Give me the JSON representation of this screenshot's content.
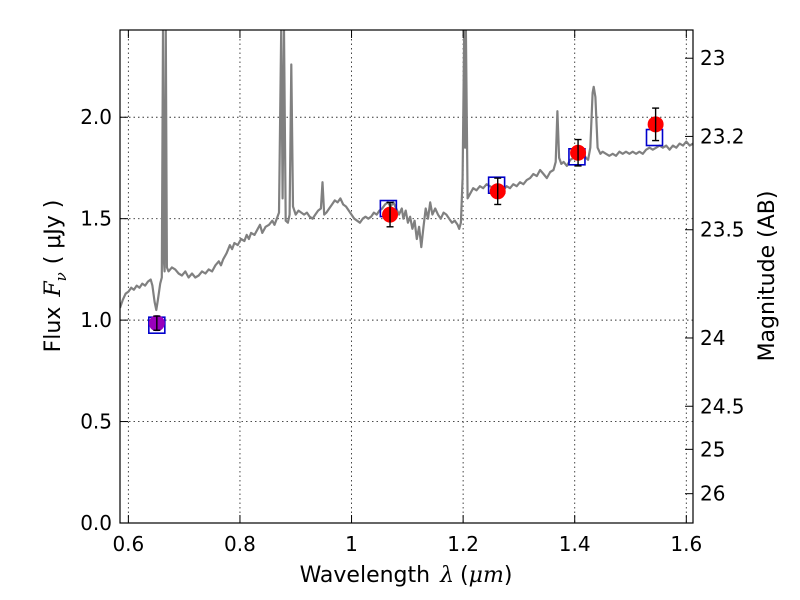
{
  "chart_data": {
    "type": "scatter",
    "xlabel": "Wavelength",
    "xlabel_symbol": "λ",
    "xlabel_unit_open": "(",
    "xlabel_unit": "μm",
    "xlabel_unit_close": ")",
    "ylabel_prefix": "Flux",
    "ylabel_symbol": "F",
    "ylabel_subscript": "ν",
    "ylabel_unit": "( μJy )",
    "y2label": "Magnitude (AB)",
    "xlim": [
      0.585,
      1.612
    ],
    "ylim": [
      0.0,
      2.43
    ],
    "grid": true,
    "xticks": [
      {
        "value": 0.6,
        "label": "0.6"
      },
      {
        "value": 0.8,
        "label": "0.8"
      },
      {
        "value": 1.0,
        "label": "1"
      },
      {
        "value": 1.2,
        "label": "1.2"
      },
      {
        "value": 1.4,
        "label": "1.4"
      },
      {
        "value": 1.6,
        "label": "1.6"
      }
    ],
    "yticks": [
      {
        "value": 0.0,
        "label": "0.0"
      },
      {
        "value": 0.5,
        "label": "0.5"
      },
      {
        "value": 1.0,
        "label": "1.0"
      },
      {
        "value": 1.5,
        "label": "1.5"
      },
      {
        "value": 2.0,
        "label": "2.0"
      }
    ],
    "y2ticks": [
      {
        "value": 23,
        "label": "23"
      },
      {
        "value": 23.2,
        "label": "23.2"
      },
      {
        "value": 23.5,
        "label": "23.5"
      },
      {
        "value": 24,
        "label": "24"
      },
      {
        "value": 24.5,
        "label": "24.5"
      },
      {
        "value": 25,
        "label": "25"
      },
      {
        "value": 26,
        "label": "26"
      }
    ],
    "colors": {
      "spectrum": "#808080",
      "observed": "#ff0000",
      "model": "#0000cc",
      "observed_first": "#9900bb",
      "grid": "#333333",
      "errorbar": "#000000"
    },
    "spectrum": [
      [
        0.585,
        1.06
      ],
      [
        0.59,
        1.1
      ],
      [
        0.595,
        1.13
      ],
      [
        0.6,
        1.14
      ],
      [
        0.605,
        1.16
      ],
      [
        0.61,
        1.15
      ],
      [
        0.615,
        1.17
      ],
      [
        0.62,
        1.16
      ],
      [
        0.625,
        1.18
      ],
      [
        0.63,
        1.17
      ],
      [
        0.635,
        1.19
      ],
      [
        0.64,
        1.2
      ],
      [
        0.643,
        1.17
      ],
      [
        0.647,
        1.09
      ],
      [
        0.65,
        1.05
      ],
      [
        0.653,
        1.1
      ],
      [
        0.657,
        1.18
      ],
      [
        0.66,
        1.21
      ],
      [
        0.662,
        2.43
      ],
      [
        0.6635,
        1.3
      ],
      [
        0.665,
        1.24
      ],
      [
        0.667,
        2.43
      ],
      [
        0.669,
        1.26
      ],
      [
        0.672,
        1.24
      ],
      [
        0.678,
        1.26
      ],
      [
        0.684,
        1.25
      ],
      [
        0.69,
        1.23
      ],
      [
        0.696,
        1.22
      ],
      [
        0.702,
        1.24
      ],
      [
        0.708,
        1.21
      ],
      [
        0.714,
        1.23
      ],
      [
        0.72,
        1.21
      ],
      [
        0.726,
        1.22
      ],
      [
        0.732,
        1.24
      ],
      [
        0.738,
        1.23
      ],
      [
        0.744,
        1.25
      ],
      [
        0.75,
        1.24
      ],
      [
        0.756,
        1.27
      ],
      [
        0.762,
        1.29
      ],
      [
        0.766,
        1.27
      ],
      [
        0.77,
        1.3
      ],
      [
        0.776,
        1.33
      ],
      [
        0.782,
        1.37
      ],
      [
        0.786,
        1.35
      ],
      [
        0.79,
        1.38
      ],
      [
        0.796,
        1.37
      ],
      [
        0.802,
        1.4
      ],
      [
        0.808,
        1.39
      ],
      [
        0.812,
        1.42
      ],
      [
        0.816,
        1.4
      ],
      [
        0.82,
        1.43
      ],
      [
        0.826,
        1.42
      ],
      [
        0.832,
        1.45
      ],
      [
        0.836,
        1.47
      ],
      [
        0.84,
        1.43
      ],
      [
        0.846,
        1.46
      ],
      [
        0.852,
        1.47
      ],
      [
        0.858,
        1.49
      ],
      [
        0.862,
        1.47
      ],
      [
        0.866,
        1.5
      ],
      [
        0.87,
        1.53
      ],
      [
        0.874,
        2.43
      ],
      [
        0.8765,
        1.6
      ],
      [
        0.879,
        2.43
      ],
      [
        0.882,
        1.49
      ],
      [
        0.886,
        1.48
      ],
      [
        0.889,
        1.52
      ],
      [
        0.892,
        2.26
      ],
      [
        0.895,
        1.56
      ],
      [
        0.9,
        1.52
      ],
      [
        0.905,
        1.54
      ],
      [
        0.91,
        1.53
      ],
      [
        0.915,
        1.52
      ],
      [
        0.92,
        1.53
      ],
      [
        0.925,
        1.51
      ],
      [
        0.93,
        1.5
      ],
      [
        0.935,
        1.52
      ],
      [
        0.94,
        1.54
      ],
      [
        0.945,
        1.55
      ],
      [
        0.948,
        1.68
      ],
      [
        0.951,
        1.52
      ],
      [
        0.955,
        1.53
      ],
      [
        0.96,
        1.55
      ],
      [
        0.965,
        1.57
      ],
      [
        0.97,
        1.59
      ],
      [
        0.975,
        1.58
      ],
      [
        0.98,
        1.6
      ],
      [
        0.985,
        1.57
      ],
      [
        0.99,
        1.56
      ],
      [
        0.995,
        1.54
      ],
      [
        1.0,
        1.52
      ],
      [
        1.005,
        1.5
      ],
      [
        1.01,
        1.49
      ],
      [
        1.015,
        1.48
      ],
      [
        1.02,
        1.5
      ],
      [
        1.025,
        1.51
      ],
      [
        1.03,
        1.5
      ],
      [
        1.035,
        1.51
      ],
      [
        1.04,
        1.53
      ],
      [
        1.045,
        1.52
      ],
      [
        1.05,
        1.54
      ],
      [
        1.055,
        1.55
      ],
      [
        1.06,
        1.57
      ],
      [
        1.065,
        1.58
      ],
      [
        1.07,
        1.56
      ],
      [
        1.075,
        1.58
      ],
      [
        1.08,
        1.55
      ],
      [
        1.085,
        1.52
      ],
      [
        1.09,
        1.55
      ],
      [
        1.093,
        1.5
      ],
      [
        1.097,
        1.54
      ],
      [
        1.101,
        1.48
      ],
      [
        1.105,
        1.51
      ],
      [
        1.109,
        1.45
      ],
      [
        1.113,
        1.49
      ],
      [
        1.117,
        1.4
      ],
      [
        1.121,
        1.46
      ],
      [
        1.125,
        1.36
      ],
      [
        1.129,
        1.46
      ],
      [
        1.133,
        1.55
      ],
      [
        1.137,
        1.5
      ],
      [
        1.141,
        1.58
      ],
      [
        1.145,
        1.52
      ],
      [
        1.15,
        1.55
      ],
      [
        1.155,
        1.52
      ],
      [
        1.16,
        1.5
      ],
      [
        1.165,
        1.53
      ],
      [
        1.17,
        1.52
      ],
      [
        1.175,
        1.5
      ],
      [
        1.18,
        1.48
      ],
      [
        1.185,
        1.49
      ],
      [
        1.19,
        1.47
      ],
      [
        1.193,
        1.45
      ],
      [
        1.196,
        1.48
      ],
      [
        1.199,
        1.7
      ],
      [
        1.202,
        2.43
      ],
      [
        1.2035,
        1.85
      ],
      [
        1.205,
        2.43
      ],
      [
        1.208,
        1.6
      ],
      [
        1.212,
        1.62
      ],
      [
        1.218,
        1.65
      ],
      [
        1.224,
        1.64
      ],
      [
        1.23,
        1.66
      ],
      [
        1.236,
        1.65
      ],
      [
        1.242,
        1.67
      ],
      [
        1.248,
        1.66
      ],
      [
        1.254,
        1.65
      ],
      [
        1.26,
        1.64
      ],
      [
        1.266,
        1.65
      ],
      [
        1.272,
        1.64
      ],
      [
        1.278,
        1.66
      ],
      [
        1.284,
        1.65
      ],
      [
        1.29,
        1.67
      ],
      [
        1.296,
        1.66
      ],
      [
        1.302,
        1.68
      ],
      [
        1.308,
        1.67
      ],
      [
        1.314,
        1.69
      ],
      [
        1.32,
        1.7
      ],
      [
        1.326,
        1.72
      ],
      [
        1.332,
        1.71
      ],
      [
        1.338,
        1.74
      ],
      [
        1.344,
        1.72
      ],
      [
        1.35,
        1.7
      ],
      [
        1.356,
        1.73
      ],
      [
        1.362,
        1.74
      ],
      [
        1.366,
        1.78
      ],
      [
        1.369,
        2.03
      ],
      [
        1.372,
        1.8
      ],
      [
        1.376,
        1.77
      ],
      [
        1.38,
        1.78
      ],
      [
        1.386,
        1.76
      ],
      [
        1.392,
        1.79
      ],
      [
        1.398,
        1.8
      ],
      [
        1.404,
        1.82
      ],
      [
        1.41,
        1.81
      ],
      [
        1.416,
        1.82
      ],
      [
        1.42,
        1.8
      ],
      [
        1.424,
        1.79
      ],
      [
        1.428,
        1.85
      ],
      [
        1.432,
        2.12
      ],
      [
        1.434,
        2.15
      ],
      [
        1.437,
        2.1
      ],
      [
        1.441,
        1.85
      ],
      [
        1.446,
        1.82
      ],
      [
        1.45,
        1.83
      ],
      [
        1.456,
        1.82
      ],
      [
        1.462,
        1.81
      ],
      [
        1.468,
        1.82
      ],
      [
        1.474,
        1.81
      ],
      [
        1.48,
        1.83
      ],
      [
        1.486,
        1.82
      ],
      [
        1.492,
        1.83
      ],
      [
        1.498,
        1.82
      ],
      [
        1.504,
        1.83
      ],
      [
        1.51,
        1.82
      ],
      [
        1.516,
        1.83
      ],
      [
        1.522,
        1.82
      ],
      [
        1.528,
        1.84
      ],
      [
        1.534,
        1.85
      ],
      [
        1.54,
        1.84
      ],
      [
        1.546,
        1.85
      ],
      [
        1.552,
        1.86
      ],
      [
        1.558,
        1.85
      ],
      [
        1.564,
        1.86
      ],
      [
        1.57,
        1.84
      ],
      [
        1.576,
        1.86
      ],
      [
        1.582,
        1.85
      ],
      [
        1.588,
        1.87
      ],
      [
        1.594,
        1.86
      ],
      [
        1.6,
        1.88
      ],
      [
        1.606,
        1.86
      ],
      [
        1.612,
        1.87
      ]
    ],
    "observed_points": [
      {
        "x": 0.651,
        "y": 0.985,
        "err": 0.035
      },
      {
        "x": 1.069,
        "y": 1.52,
        "err": 0.06
      },
      {
        "x": 1.262,
        "y": 1.635,
        "err": 0.065
      },
      {
        "x": 1.406,
        "y": 1.825,
        "err": 0.065
      },
      {
        "x": 1.545,
        "y": 1.965,
        "err": 0.08
      }
    ],
    "model_points": [
      {
        "x": 0.651,
        "y": 0.975
      },
      {
        "x": 1.066,
        "y": 1.55
      },
      {
        "x": 1.26,
        "y": 1.665
      },
      {
        "x": 1.404,
        "y": 1.805
      },
      {
        "x": 1.543,
        "y": 1.9
      }
    ]
  }
}
